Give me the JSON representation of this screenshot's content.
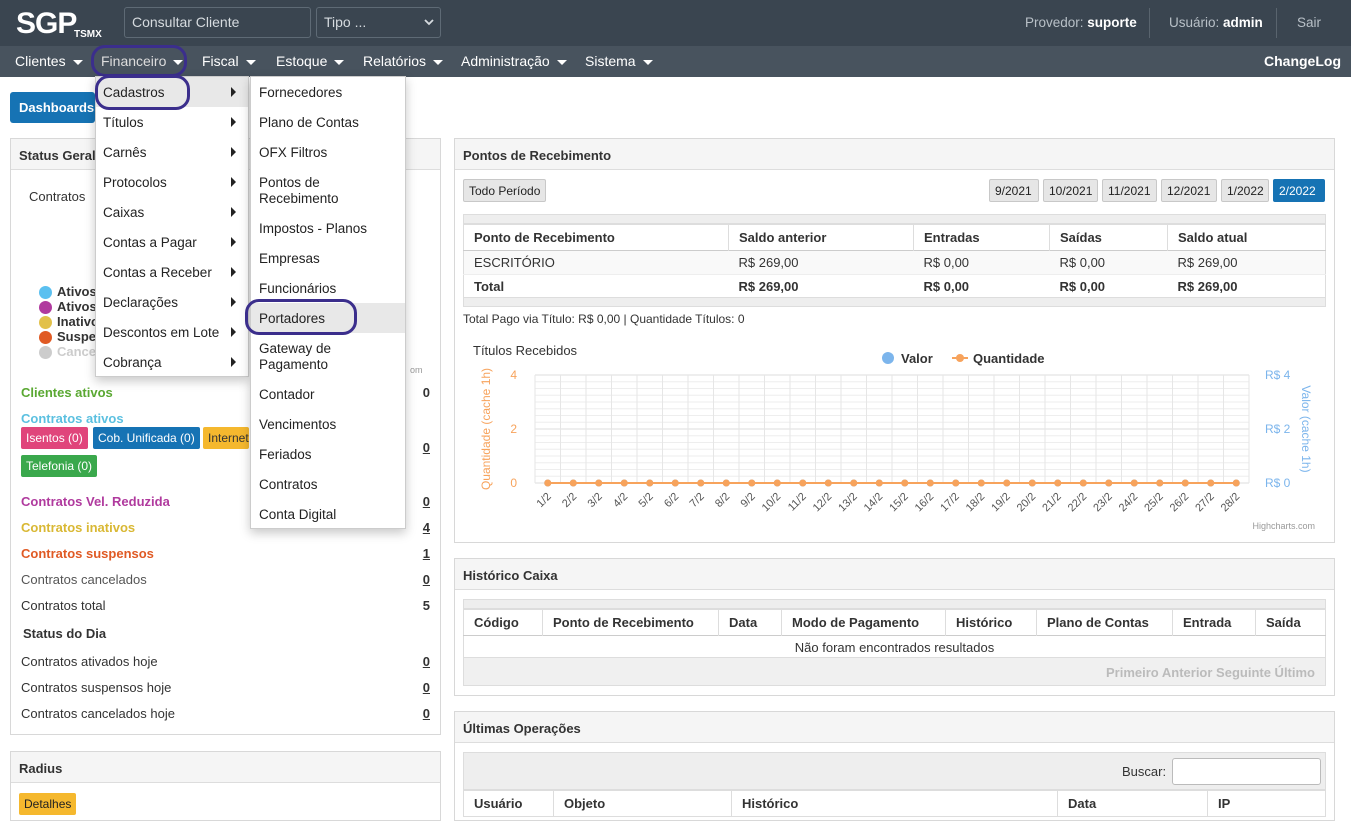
{
  "header": {
    "logo_text": "SGP",
    "logo_sub": "TSMX",
    "search_placeholder": "Consultar Cliente",
    "tipo_select": "Tipo ...",
    "provedor_label": "Provedor:",
    "provedor_value": "suporte",
    "usuario_label": "Usuário:",
    "usuario_value": "admin",
    "sair": "Sair"
  },
  "nav": {
    "items": [
      "Clientes",
      "Financeiro",
      "Fiscal",
      "Estoque",
      "Relatórios",
      "Administração",
      "Sistema"
    ],
    "changelog": "ChangeLog"
  },
  "dashboards_button": "Dashboards",
  "financeiro_menu": [
    "Cadastros",
    "Títulos",
    "Carnês",
    "Protocolos",
    "Caixas",
    "Contas a Pagar",
    "Contas a Receber",
    "Declarações",
    "Descontos em Lote",
    "Cobrança"
  ],
  "cadastros_submenu": [
    "Fornecedores",
    "Plano de Contas",
    "OFX Filtros",
    "Pontos de\nRecebimento",
    "Impostos - Planos",
    "Empresas",
    "Funcionários",
    "Portadores",
    "Gateway de\nPagamento",
    "Contador",
    "Vencimentos",
    "Feriados",
    "Contratos",
    "Conta Digital"
  ],
  "status_geral": {
    "title": "Status Geral",
    "contratos_label": "Contratos",
    "legend": [
      {
        "label": "Ativos",
        "color": "#5bc0f0"
      },
      {
        "label": "Ativos",
        "color": "#b03a9e"
      },
      {
        "label": "Inativo",
        "color": "#e2c14a"
      },
      {
        "label": "Suspe",
        "color": "#e05a24"
      },
      {
        "label": "Cance",
        "color": "#cccccc"
      }
    ],
    "hc_fragment": "om",
    "clientes_ativos": {
      "label": "Clientes ativos",
      "value": "0",
      "color": "#5aa832"
    },
    "contratos_ativos": {
      "label": "Contratos ativos",
      "value": "0",
      "color": "#5bc0e0"
    },
    "badges": [
      {
        "label": "Isentos (0)",
        "color": "#e0457b"
      },
      {
        "label": "Cob. Unificada (0)",
        "color": "#1673b4"
      },
      {
        "label": "Internet",
        "color": "#f5b82e"
      },
      {
        "label": "Telefonia (0)",
        "color": "#3aa84c"
      }
    ],
    "rows": [
      {
        "label": "Contratos Vel. Reduzida",
        "value": "0",
        "color": "#b03a9e"
      },
      {
        "label": "Contratos inativos",
        "value": "4",
        "color": "#d9b834"
      },
      {
        "label": "Contratos suspensos",
        "value": "1",
        "color": "#e05a24"
      },
      {
        "label": "Contratos cancelados",
        "value": "0",
        "color": "#555555"
      },
      {
        "label": "Contratos total",
        "value": "5",
        "color": "#333333"
      }
    ],
    "status_dia_title": "Status do Dia",
    "dia_rows": [
      {
        "label": "Contratos ativados hoje",
        "value": "0"
      },
      {
        "label": "Contratos suspensos hoje",
        "value": "0"
      },
      {
        "label": "Contratos cancelados hoje",
        "value": "0"
      }
    ]
  },
  "radius": {
    "title": "Radius",
    "detalhes": "Detalhes"
  },
  "pontos": {
    "title": "Pontos de Recebimento",
    "todo_periodo": "Todo Período",
    "months": [
      "9/2021",
      "10/2021",
      "11/2021",
      "12/2021",
      "1/2022",
      "2/2022"
    ],
    "headers": [
      "Ponto de Recebimento",
      "Saldo anterior",
      "Entradas",
      "Saídas",
      "Saldo atual"
    ],
    "row": [
      "ESCRITÓRIO",
      "R$ 269,00",
      "R$ 0,00",
      "R$ 0,00",
      "R$ 269,00"
    ],
    "total": [
      "Total",
      "R$ 269,00",
      "R$ 0,00",
      "R$ 0,00",
      "R$ 269,00"
    ],
    "summary": "Total Pago via Título: R$ 0,00 | Quantidade Títulos: 0"
  },
  "chart_data": {
    "type": "line",
    "title": "Títulos Recebidos",
    "x": [
      "1/2",
      "2/2",
      "3/2",
      "4/2",
      "5/2",
      "6/2",
      "7/2",
      "8/2",
      "9/2",
      "10/2",
      "11/2",
      "12/2",
      "13/2",
      "14/2",
      "15/2",
      "16/2",
      "17/2",
      "18/2",
      "19/2",
      "20/2",
      "21/2",
      "22/2",
      "23/2",
      "24/2",
      "25/2",
      "26/2",
      "27/2",
      "28/2"
    ],
    "series": [
      {
        "name": "Valor",
        "color": "#7cb5ec",
        "axis": "right",
        "values": [
          0,
          0,
          0,
          0,
          0,
          0,
          0,
          0,
          0,
          0,
          0,
          0,
          0,
          0,
          0,
          0,
          0,
          0,
          0,
          0,
          0,
          0,
          0,
          0,
          0,
          0,
          0,
          0
        ]
      },
      {
        "name": "Quantidade",
        "color": "#f7a35c",
        "axis": "left",
        "values": [
          0,
          0,
          0,
          0,
          0,
          0,
          0,
          0,
          0,
          0,
          0,
          0,
          0,
          0,
          0,
          0,
          0,
          0,
          0,
          0,
          0,
          0,
          0,
          0,
          0,
          0,
          0,
          0
        ]
      }
    ],
    "ylabel_left": "Quantidade (cache 1h)",
    "ylabel_right": "Valor (cache 1h)",
    "yticks_left": [
      "0",
      "2",
      "4"
    ],
    "yticks_right": [
      "R$ 0",
      "R$ 2",
      "R$ 4"
    ],
    "ylim": [
      0,
      4
    ],
    "legend_position": "top-center",
    "credits": "Highcharts.com"
  },
  "historico": {
    "title": "Histórico Caixa",
    "headers": [
      "Código",
      "Ponto de Recebimento",
      "Data",
      "Modo de Pagamento",
      "Histórico",
      "Plano de Contas",
      "Entrada",
      "Saída"
    ],
    "empty": "Não foram encontrados resultados",
    "pagination": "Primeiro Anterior Seguinte Último"
  },
  "ultimas": {
    "title": "Últimas Operações",
    "buscar": "Buscar:",
    "headers": [
      "Usuário",
      "Objeto",
      "Histórico",
      "Data",
      "IP"
    ]
  }
}
